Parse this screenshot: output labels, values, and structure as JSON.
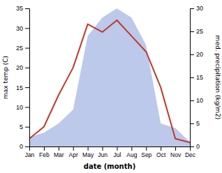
{
  "chart_data": {
    "type": "line",
    "categories": [
      "Jan",
      "Feb",
      "Mar",
      "Apr",
      "May",
      "Jun",
      "Jul",
      "Aug",
      "Sep",
      "Oct",
      "Nov",
      "Dec"
    ],
    "series": [
      {
        "type": "line",
        "color": "#c0392b",
        "values": [
          2,
          5,
          13,
          20,
          31,
          29,
          32,
          28,
          24,
          15,
          2,
          1
        ]
      },
      {
        "type": "area",
        "axis": "y2",
        "color": "#b0bfe8",
        "values": [
          2,
          3,
          5,
          8,
          24,
          28,
          30,
          28,
          22,
          5,
          4,
          1
        ]
      }
    ],
    "xlabel": "date (month)",
    "ylabel": "max temp (C)",
    "y2label": "med. precipitation (kg/m2)",
    "ylim": [
      0,
      35
    ],
    "yticks": [
      0,
      5,
      10,
      15,
      20,
      25,
      30,
      35
    ],
    "y2lim": [
      0,
      30
    ],
    "y2ticks": [
      0,
      5,
      10,
      15,
      20,
      25,
      30
    ],
    "grid": false
  }
}
